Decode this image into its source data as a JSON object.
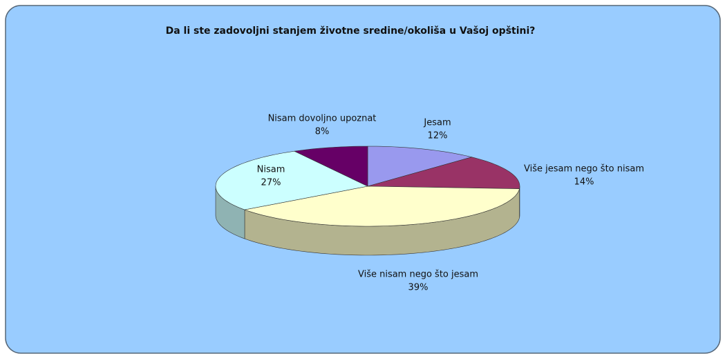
{
  "chart_data": {
    "type": "pie",
    "title": "Da li ste zadovoljni stanjem životne sredine/okoliša u Vašoj opštini?",
    "categories": [
      "Jesam",
      "Više jesam nego što nisam",
      "Više nisam nego što jesam",
      "Nisam",
      "Nisam dovoljno upoznat"
    ],
    "values": [
      12,
      14,
      39,
      27,
      8
    ],
    "value_labels": [
      "12%",
      "14%",
      "39%",
      "27%",
      "8%"
    ],
    "colors": [
      "#9999ee",
      "#993366",
      "#ffffcc",
      "#ccffff",
      "#660066"
    ]
  }
}
